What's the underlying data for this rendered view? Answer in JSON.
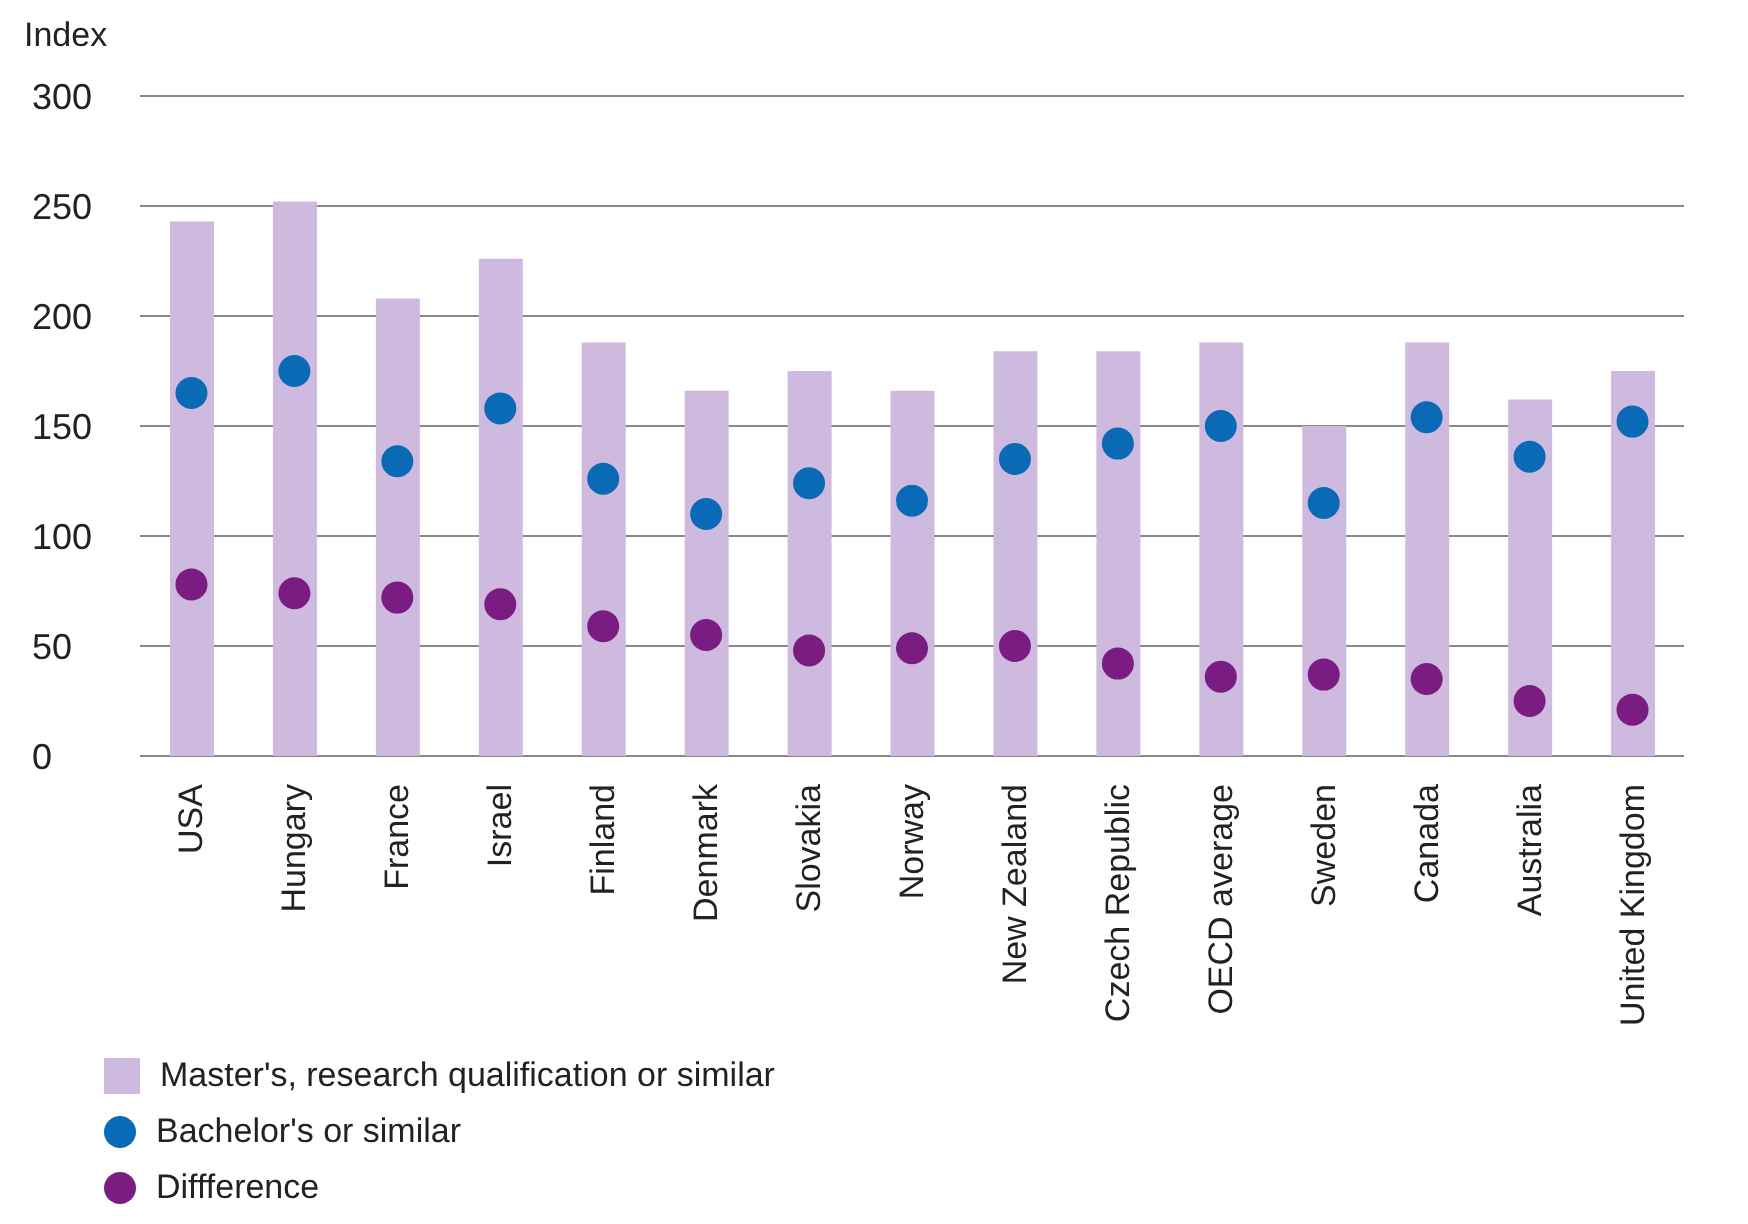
{
  "chart_data": {
    "type": "bar",
    "ylabel": "Index",
    "categories": [
      "USA",
      "Hungary",
      "France",
      "Israel",
      "Finland",
      "Denmark",
      "Slovakia",
      "Norway",
      "New Zealand",
      "Czech Republic",
      "OECD average",
      "Sweden",
      "Canada",
      "Australia",
      "United Kingdom"
    ],
    "series": [
      {
        "name": "Master's, research qualification or similar",
        "color": "#cfbadf",
        "values": [
          243,
          252,
          208,
          226,
          188,
          166,
          175,
          166,
          184,
          184,
          188,
          150,
          188,
          162,
          175
        ]
      },
      {
        "name": "Bachelor's or similar",
        "type": "scatter",
        "color": "#0b6ab5",
        "values": [
          165,
          175,
          134,
          158,
          126,
          110,
          124,
          116,
          135,
          142,
          150,
          115,
          154,
          136,
          152
        ]
      },
      {
        "name": "Diffference",
        "type": "scatter",
        "color": "#7b1c82",
        "values": [
          78,
          74,
          72,
          69,
          59,
          55,
          48,
          49,
          50,
          42,
          36,
          37,
          35,
          25,
          21
        ]
      }
    ],
    "ylim": [
      0,
      300
    ],
    "yticks": [
      0,
      50,
      100,
      150,
      200,
      250,
      300
    ],
    "grid": "y",
    "legend": "bottom left",
    "marker": "circle"
  }
}
